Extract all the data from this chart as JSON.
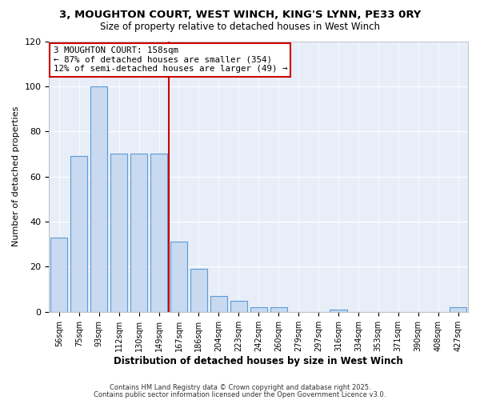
{
  "title": "3, MOUGHTON COURT, WEST WINCH, KING'S LYNN, PE33 0RY",
  "subtitle": "Size of property relative to detached houses in West Winch",
  "xlabel": "Distribution of detached houses by size in West Winch",
  "ylabel": "Number of detached properties",
  "bar_labels": [
    "56sqm",
    "75sqm",
    "93sqm",
    "112sqm",
    "130sqm",
    "149sqm",
    "167sqm",
    "186sqm",
    "204sqm",
    "223sqm",
    "242sqm",
    "260sqm",
    "279sqm",
    "297sqm",
    "316sqm",
    "334sqm",
    "353sqm",
    "371sqm",
    "390sqm",
    "408sqm",
    "427sqm"
  ],
  "bar_values": [
    33,
    69,
    100,
    70,
    70,
    70,
    31,
    19,
    7,
    5,
    2,
    2,
    0,
    0,
    1,
    0,
    0,
    0,
    0,
    0,
    2
  ],
  "bar_color": "#c9d9f0",
  "bar_edge_color": "#5b9bd5",
  "vline_color": "#cc0000",
  "annotation_title": "3 MOUGHTON COURT: 158sqm",
  "annotation_line1": "← 87% of detached houses are smaller (354)",
  "annotation_line2": "12% of semi-detached houses are larger (49) →",
  "annotation_box_color": "#cc0000",
  "ylim": [
    0,
    120
  ],
  "yticks": [
    0,
    20,
    40,
    60,
    80,
    100,
    120
  ],
  "footer1": "Contains HM Land Registry data © Crown copyright and database right 2025.",
  "footer2": "Contains public sector information licensed under the Open Government Licence v3.0.",
  "fig_bg_color": "#ffffff",
  "plot_bg_color": "#e8eef8",
  "grid_color": "#ffffff",
  "vline_x_index": 5.5
}
